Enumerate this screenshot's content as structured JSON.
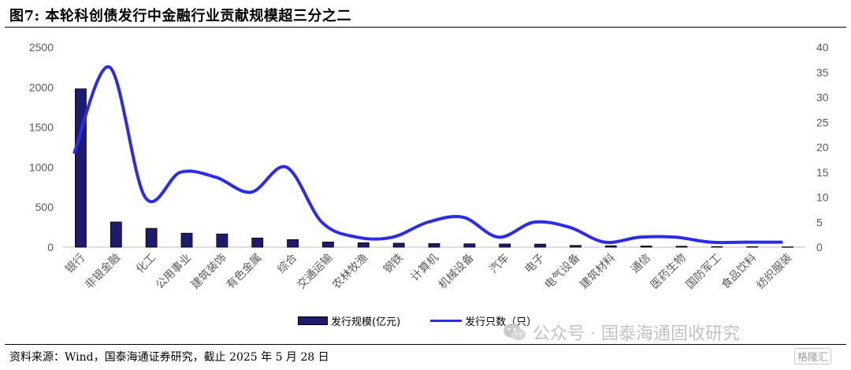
{
  "figure": {
    "title": "图7:  本轮科创债发行中金融行业贡献规模超三分之二",
    "source": "资料来源：Wind，国泰海通证券研究，截止 2025 年 5 月 28 日"
  },
  "watermark": {
    "text": "公众号 · 国泰海通固收研究",
    "badge": "格隆汇"
  },
  "chart_data": {
    "type": "bar+line",
    "categories": [
      "银行",
      "非银金融",
      "化工",
      "公用事业",
      "建筑装饰",
      "有色金属",
      "综合",
      "交通运输",
      "农林牧渔",
      "钢铁",
      "计算机",
      "机械设备",
      "汽车",
      "电子",
      "电气设备",
      "建筑材料",
      "通信",
      "医药生物",
      "国防军工",
      "食品饮料",
      "纺织服装"
    ],
    "series": [
      {
        "name": "发行规模(亿元)",
        "type": "bar",
        "axis": "left",
        "values": [
          1980,
          315,
          235,
          175,
          165,
          115,
          95,
          65,
          55,
          50,
          45,
          42,
          40,
          38,
          22,
          18,
          15,
          12,
          8,
          6,
          4
        ]
      },
      {
        "name": "发行只数（只）",
        "type": "line",
        "axis": "right",
        "values": [
          19,
          36,
          10,
          15,
          14,
          11,
          16,
          5,
          2,
          2,
          5,
          6,
          2,
          5,
          4,
          1,
          2,
          2,
          1,
          1,
          1
        ]
      }
    ],
    "y_left": {
      "min": 0,
      "max": 2500,
      "ticks": [
        0,
        500,
        1000,
        1500,
        2000,
        2500
      ]
    },
    "y_right": {
      "min": 0,
      "max": 40,
      "ticks": [
        0,
        5,
        10,
        15,
        20,
        25,
        30,
        35,
        40
      ]
    },
    "grid": false,
    "legend_position": "bottom",
    "colors": {
      "bar": "#1c1b6e",
      "line": "#2b2bf0",
      "axis": "#bfbfbf",
      "tick_text": "#595959"
    }
  }
}
